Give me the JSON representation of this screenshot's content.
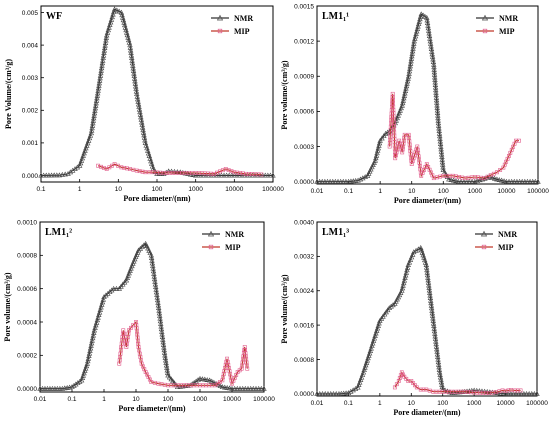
{
  "chart_data": [
    {
      "type": "line",
      "title": "WF",
      "xlabel": "Pore diameter/(nm)",
      "ylabel": "Pore Volume/(cm³/g)",
      "xscale": "log",
      "xlim": [
        0.1,
        100000
      ],
      "ylim": [
        -0.0002,
        0.0052
      ],
      "xticks": [
        "0.1",
        "1",
        "10",
        "100",
        "1000",
        "10000",
        "100000"
      ],
      "yticks": [
        "0.000",
        "0.001",
        "0.002",
        "0.003",
        "0.004",
        "0.005"
      ],
      "yticks_v": [
        0,
        0.001,
        0.002,
        0.003,
        0.004,
        0.005
      ],
      "legend": "top-right",
      "series": [
        {
          "name": "NMR",
          "color": "#333333",
          "marker": "triangle",
          "x": [
            0.1,
            0.3,
            0.5,
            1,
            2,
            3,
            5,
            8,
            12,
            20,
            30,
            50,
            80,
            100,
            150,
            200,
            400,
            1000,
            10000,
            100000
          ],
          "y": [
            0,
            1e-05,
            5e-05,
            0.0003,
            0.0013,
            0.0026,
            0.0043,
            0.0051,
            0.005,
            0.004,
            0.0025,
            0.001,
            0.0002,
            5e-05,
            5e-05,
            0.00013,
            0.0001,
            0,
            0,
            0
          ]
        },
        {
          "name": "MIP",
          "color": "#c0392b",
          "marker": "square",
          "x": [
            3,
            5,
            8,
            12,
            20,
            30,
            50,
            80,
            150,
            300,
            1000,
            3000,
            6000,
            10000,
            20000,
            50000
          ],
          "y": [
            0.0003,
            0.0002,
            0.00035,
            0.00025,
            0.0002,
            0.00015,
            0.0001,
            0.0001,
            8e-05,
            8e-05,
            8e-05,
            5e-05,
            0.0002,
            0.0001,
            5e-05,
            3e-05
          ]
        }
      ]
    },
    {
      "type": "line",
      "title": "LM1₁¹",
      "xlabel": "Pore diameter/(nm)",
      "ylabel": "Pore volume/(cm³/g)",
      "xscale": "log",
      "xlim": [
        0.01,
        100000
      ],
      "ylim": [
        -2e-05,
        0.0015
      ],
      "xticks": [
        "0.01",
        "0.1",
        "1",
        "10",
        "100",
        "1000",
        "10000",
        "100000"
      ],
      "yticks": [
        "0.0000",
        "0.0003",
        "0.0006",
        "0.0009",
        "0.0012",
        "0.0015"
      ],
      "yticks_v": [
        0,
        0.0003,
        0.0006,
        0.0009,
        0.0012,
        0.0015
      ],
      "legend": "top-right",
      "series": [
        {
          "name": "NMR",
          "color": "#333333",
          "marker": "triangle",
          "x": [
            0.01,
            0.1,
            0.2,
            0.4,
            0.7,
            1,
            1.5,
            2,
            3,
            5,
            8,
            12,
            20,
            30,
            50,
            70,
            100,
            150,
            300,
            1000,
            3000,
            5000,
            10000,
            100000
          ],
          "y": [
            0,
            0,
            1e-05,
            5e-05,
            0.00018,
            0.00035,
            0.00041,
            0.00043,
            0.0005,
            0.00065,
            0.0009,
            0.0012,
            0.00143,
            0.0014,
            0.001,
            0.0005,
            0.0001,
            2e-05,
            0,
            0,
            4e-05,
            2e-05,
            0,
            0
          ]
        },
        {
          "name": "MIP",
          "color": "#c0392b",
          "marker": "square",
          "x": [
            2,
            2.5,
            3,
            4,
            5,
            6,
            8,
            10,
            15,
            20,
            30,
            50,
            100,
            200,
            500,
            1000,
            2000,
            5000,
            8000,
            12000,
            20000,
            25000
          ],
          "y": [
            0.0003,
            0.00075,
            0.0002,
            0.00035,
            0.00025,
            0.0004,
            0.0004,
            0.00015,
            0.0003,
            5e-05,
            0.00015,
            3e-05,
            5e-05,
            5e-05,
            3e-05,
            4e-05,
            3e-05,
            8e-05,
            0.00012,
            0.00022,
            0.00035,
            0.00035
          ]
        }
      ]
    },
    {
      "type": "line",
      "title": "LM1₁²",
      "xlabel": "Pore diameter/(nm)",
      "ylabel": "Pore volume/(cm³/g)",
      "xscale": "log",
      "xlim": [
        0.01,
        100000
      ],
      "ylim": [
        -2e-05,
        0.001
      ],
      "xticks": [
        "0.01",
        "0.1",
        "1",
        "10",
        "100",
        "1000",
        "10000",
        "100000"
      ],
      "yticks": [
        "0.0000",
        "0.0002",
        "0.0004",
        "0.0006",
        "0.0008",
        "0.0010"
      ],
      "yticks_v": [
        0,
        0.0002,
        0.0004,
        0.0006,
        0.0008,
        0.001
      ],
      "legend": "top-right",
      "series": [
        {
          "name": "NMR",
          "color": "#333333",
          "marker": "triangle",
          "x": [
            0.01,
            0.05,
            0.1,
            0.2,
            0.3,
            0.5,
            1,
            2,
            3,
            5,
            8,
            12,
            20,
            30,
            50,
            80,
            100,
            200,
            500,
            1000,
            2000,
            5000,
            10000,
            100000
          ],
          "y": [
            0,
            0,
            1e-05,
            5e-05,
            0.00015,
            0.00035,
            0.00055,
            0.0006,
            0.0006,
            0.00065,
            0.00075,
            0.00083,
            0.00087,
            0.0008,
            0.0005,
            0.0002,
            8e-05,
            1e-05,
            2e-05,
            6e-05,
            5e-05,
            1e-05,
            0,
            0
          ]
        },
        {
          "name": "MIP",
          "color": "#c0392b",
          "marker": "square",
          "x": [
            3,
            4,
            5,
            6,
            8,
            10,
            12,
            15,
            20,
            30,
            50,
            100,
            200,
            500,
            1000,
            3000,
            5000,
            7000,
            10000,
            15000,
            20000,
            25000,
            30000
          ],
          "y": [
            0.00015,
            0.00035,
            0.00025,
            0.00035,
            0.00038,
            0.0004,
            0.00025,
            0.00015,
            0.0001,
            4e-05,
            3e-05,
            2e-05,
            2e-05,
            2e-05,
            2e-05,
            2e-05,
            5e-05,
            0.00018,
            3e-05,
            0.0001,
            0.00012,
            0.00025,
            0.00012
          ]
        }
      ]
    },
    {
      "type": "line",
      "title": "LM1₁³",
      "xlabel": "Pore diameter/(nm)",
      "ylabel": "Pore volume/(cm³/g)",
      "xscale": "log",
      "xlim": [
        0.01,
        100000
      ],
      "ylim": [
        -5e-05,
        0.004
      ],
      "xticks": [
        "0.01",
        "0.1",
        "1",
        "10",
        "100",
        "1000",
        "10000",
        "100000"
      ],
      "yticks": [
        "0.0000",
        "0.0008",
        "0.0016",
        "0.0024",
        "0.0032",
        "0.0040"
      ],
      "yticks_v": [
        0,
        0.0008,
        0.0016,
        0.0024,
        0.0032,
        0.004
      ],
      "legend": "top-right",
      "series": [
        {
          "name": "NMR",
          "color": "#333333",
          "marker": "triangle",
          "x": [
            0.01,
            0.05,
            0.1,
            0.2,
            0.3,
            0.5,
            1,
            2,
            3,
            5,
            8,
            12,
            20,
            30,
            50,
            80,
            100,
            200,
            500,
            1000,
            10000,
            100000
          ],
          "y": [
            0,
            0,
            2e-05,
            0.00015,
            0.0005,
            0.001,
            0.0017,
            0.002,
            0.0021,
            0.0024,
            0.003,
            0.0033,
            0.0034,
            0.003,
            0.0017,
            0.0005,
            0.0001,
            2e-05,
            5e-05,
            8e-05,
            0,
            0
          ]
        },
        {
          "name": "MIP",
          "color": "#c0392b",
          "marker": "square",
          "x": [
            3,
            4,
            5,
            6,
            8,
            10,
            15,
            20,
            30,
            50,
            100,
            200,
            500,
            1000,
            3000,
            5000,
            8000,
            10000,
            15000,
            20000,
            30000
          ],
          "y": [
            0.00015,
            0.0003,
            0.0005,
            0.0004,
            0.0003,
            0.0003,
            0.00015,
            0.0001,
            0.0001,
            5e-05,
            5e-05,
            5e-05,
            5e-05,
            3e-05,
            2e-05,
            4e-05,
            8e-05,
            7e-05,
            9e-05,
            8e-05,
            8e-05
          ]
        }
      ]
    }
  ]
}
